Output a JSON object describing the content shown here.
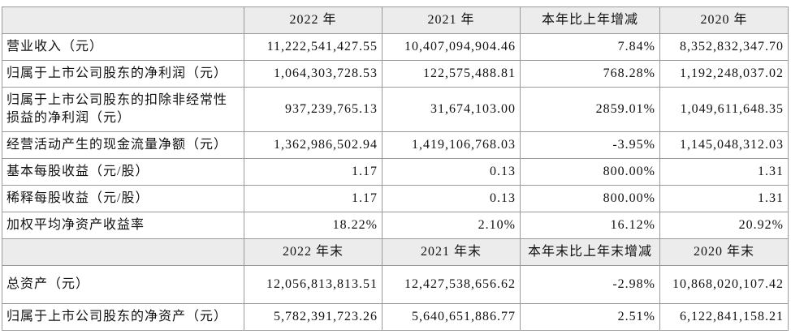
{
  "table": {
    "header": [
      "2022 年",
      "2021 年",
      "本年比上年增减",
      "2020 年"
    ],
    "rows": [
      [
        "营业收入（元）",
        "11,222,541,427.55",
        "10,407,094,904.46",
        "7.84%",
        "8,352,832,347.70"
      ],
      [
        "归属于上市公司股东的净利润（元）",
        "1,064,303,728.53",
        "122,575,488.81",
        "768.28%",
        "1,192,248,037.02"
      ],
      [
        "归属于上市公司股东的扣除非经常性损益的净利润（元）",
        "937,239,765.13",
        "31,674,103.00",
        "2859.01%",
        "1,049,611,648.35"
      ],
      [
        "经营活动产生的现金流量净额（元）",
        "1,362,986,502.94",
        "1,419,106,768.03",
        "-3.95%",
        "1,145,048,312.03"
      ],
      [
        "基本每股收益（元/股）",
        "1.17",
        "0.13",
        "800.00%",
        "1.31"
      ],
      [
        "稀释每股收益（元/股）",
        "1.17",
        "0.13",
        "800.00%",
        "1.31"
      ],
      [
        "加权平均净资产收益率",
        "18.22%",
        "2.10%",
        "16.12%",
        "20.92%"
      ]
    ],
    "header2": [
      "2022 年末",
      "2021 年末",
      "本年末比上年末增减",
      "2020 年末"
    ],
    "rows2": [
      [
        "总资产（元）",
        "12,056,813,813.51",
        "12,427,538,656.62",
        "-2.98%",
        "10,868,020,107.42"
      ],
      [
        "归属于上市公司股东的净资产（元）",
        "5,782,391,723.26",
        "5,640,651,886.77",
        "2.51%",
        "6,122,841,158.21"
      ]
    ]
  }
}
